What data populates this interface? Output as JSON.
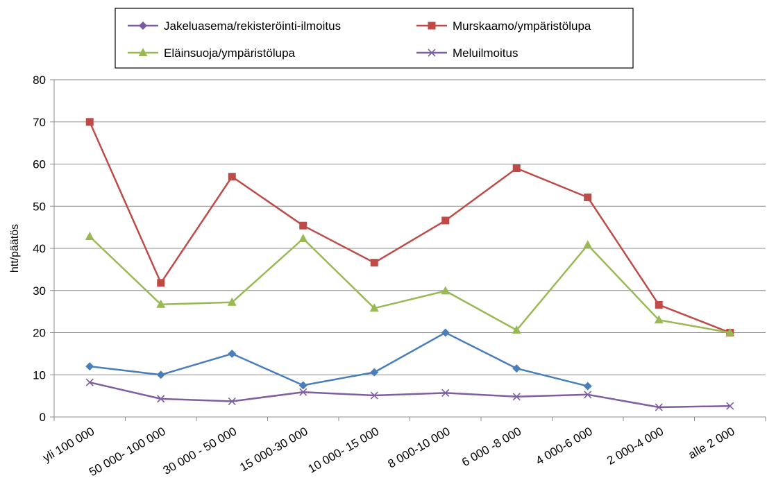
{
  "chart_data": {
    "type": "line",
    "title": "",
    "xlabel": "",
    "ylabel": "htt/päätös",
    "ylim": [
      0,
      80
    ],
    "ytick_step": 10,
    "grid": true,
    "legend_position": "top",
    "categories": [
      "yli 100 000",
      "50 000- 100 000",
      "30 000 - 50 000",
      "15 000-30 000",
      "10 000- 15 000",
      "8 000-10 000",
      "6 000 -8 000",
      "4 000-6 000",
      "2 000-4 000",
      "alle 2 000"
    ],
    "series": [
      {
        "name": "Jakeluasema/rekisteröinti-ilmoitus",
        "color": "#4a7ebb",
        "legend_color": "#7a5aa0",
        "marker": "diamond",
        "values": [
          12,
          10,
          15,
          7.5,
          10.6,
          20,
          11.5,
          7.3,
          null,
          null
        ]
      },
      {
        "name": "Murskaamo/ympäristölupa",
        "color": "#be4b48",
        "marker": "square",
        "values": [
          70,
          31.8,
          57,
          45.4,
          36.6,
          46.6,
          59,
          52.1,
          26.6,
          20
        ]
      },
      {
        "name": "Eläinsuoja/ympäristölupa",
        "color": "#98b954",
        "marker": "triangle",
        "values": [
          42.8,
          26.7,
          27.2,
          42.3,
          25.8,
          29.9,
          20.6,
          40.8,
          23,
          20
        ]
      },
      {
        "name": "Meluilmoitus",
        "color": "#7d5fa0",
        "marker": "x",
        "values": [
          8.2,
          4.3,
          3.7,
          5.9,
          5.1,
          5.7,
          4.8,
          5.3,
          2.3,
          2.6
        ]
      }
    ]
  }
}
